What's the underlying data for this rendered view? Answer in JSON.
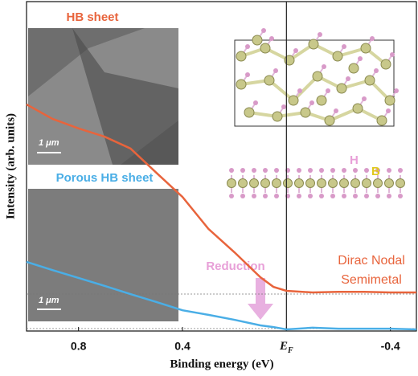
{
  "chart_data": {
    "type": "line",
    "xlabel": "Binding energy (eV)",
    "ylabel": "Intensity (arb. units)",
    "x": [
      1.0,
      0.9,
      0.8,
      0.7,
      0.6,
      0.5,
      0.4,
      0.3,
      0.2,
      0.1,
      0.05,
      0,
      -0.1,
      -0.2,
      -0.3,
      -0.4,
      -0.5
    ],
    "series": [
      {
        "name": "HB sheet",
        "color": "#e8643c",
        "values": [
          68.8,
          64.4,
          61.5,
          59,
          55.4,
          48,
          40.7,
          31,
          23.9,
          16.3,
          13.4,
          12.2,
          11.7,
          11.9,
          11.9,
          11.7,
          11.7
        ]
      },
      {
        "name": "Porous HB sheet",
        "color": "#4aaee6",
        "values": [
          21,
          18.5,
          16.1,
          13.7,
          11.2,
          8.8,
          6.3,
          4.9,
          3.4,
          1.7,
          1.2,
          0.5,
          1,
          0.7,
          0.7,
          0.7,
          0.5
        ]
      }
    ],
    "xlim": [
      1.0,
      -0.5
    ],
    "ylim": [
      0,
      100
    ],
    "xticks": [
      0.8,
      0.4,
      {
        "value": 0,
        "label": "EF"
      },
      -0.4
    ],
    "annotations": {
      "reduction": "Reduction",
      "dirac": [
        "Dirac Nodal",
        "Semimetal"
      ],
      "scale_bar": "1 μm",
      "atom_h": "H",
      "atom_b": "B"
    }
  }
}
